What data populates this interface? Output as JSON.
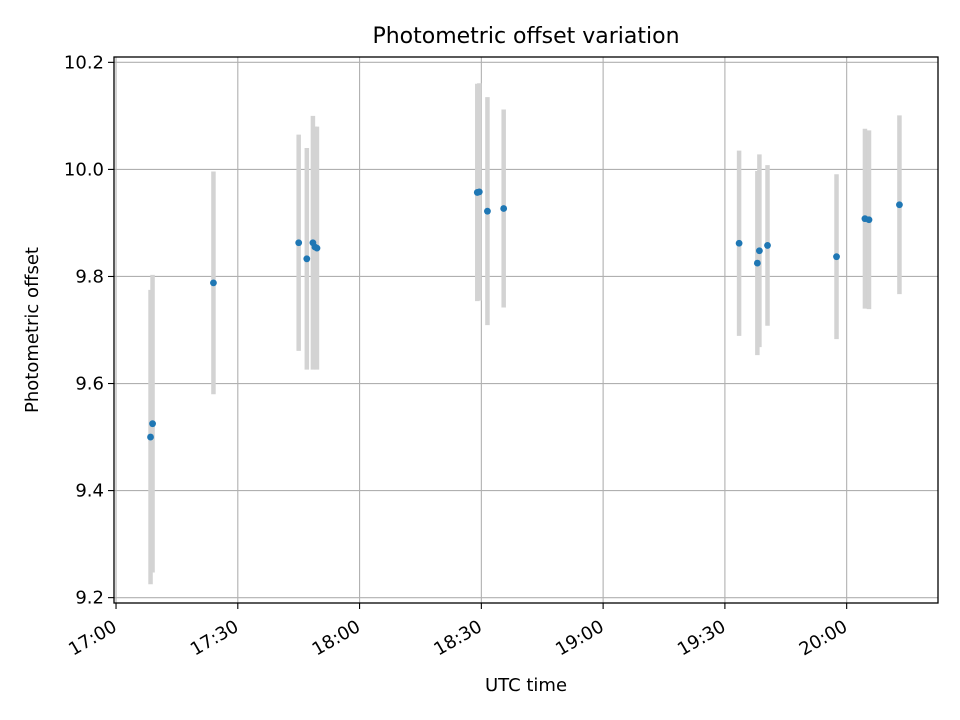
{
  "chart_data": {
    "type": "scatter",
    "title": "Photometric offset variation",
    "xlabel": "UTC time",
    "ylabel": "Photometric offset",
    "x_tick_labels": [
      "17:00",
      "17:30",
      "18:00",
      "18:30",
      "19:00",
      "19:30",
      "20:00"
    ],
    "x_ticks_minutes": [
      1020,
      1050,
      1080,
      1110,
      1140,
      1170,
      1200
    ],
    "xlim_minutes": [
      1019.5,
      1222.5
    ],
    "y_ticks": [
      9.2,
      9.4,
      9.6,
      9.8,
      10.0,
      10.2
    ],
    "y_tick_labels": [
      "9.2",
      "9.4",
      "9.6",
      "9.8",
      "10.0",
      "10.2"
    ],
    "ylim": [
      9.19,
      10.21
    ],
    "grid": true,
    "colors": {
      "points": "#1f77b4",
      "errorbars": "#d3d3d3",
      "grid": "#b0b0b0"
    },
    "points": [
      {
        "time": "17:08:30",
        "y": 9.5,
        "yerr": 0.275
      },
      {
        "time": "17:09:00",
        "y": 9.525,
        "yerr": 0.278
      },
      {
        "time": "17:24:00",
        "y": 9.788,
        "yerr": 0.208
      },
      {
        "time": "17:45:00",
        "y": 9.863,
        "yerr": 0.202
      },
      {
        "time": "17:47:00",
        "y": 9.833,
        "yerr": 0.207
      },
      {
        "time": "17:48:30",
        "y": 9.863,
        "yerr": 0.237
      },
      {
        "time": "17:49:00",
        "y": 9.855,
        "yerr": 0.225
      },
      {
        "time": "17:49:30",
        "y": 9.853,
        "yerr": 0.227
      },
      {
        "time": "18:29:00",
        "y": 9.957,
        "yerr": 0.203
      },
      {
        "time": "18:29:30",
        "y": 9.958,
        "yerr": 0.203
      },
      {
        "time": "18:31:30",
        "y": 9.922,
        "yerr": 0.213
      },
      {
        "time": "18:35:30",
        "y": 9.927,
        "yerr": 0.185
      },
      {
        "time": "19:33:30",
        "y": 9.862,
        "yerr": 0.173
      },
      {
        "time": "19:38:00",
        "y": 9.825,
        "yerr": 0.172
      },
      {
        "time": "19:38:30",
        "y": 9.848,
        "yerr": 0.18
      },
      {
        "time": "19:40:30",
        "y": 9.858,
        "yerr": 0.15
      },
      {
        "time": "19:57:30",
        "y": 9.837,
        "yerr": 0.154
      },
      {
        "time": "20:04:30",
        "y": 9.908,
        "yerr": 0.168
      },
      {
        "time": "20:05:30",
        "y": 9.906,
        "yerr": 0.167
      },
      {
        "time": "20:13:00",
        "y": 9.934,
        "yerr": 0.167
      }
    ]
  }
}
